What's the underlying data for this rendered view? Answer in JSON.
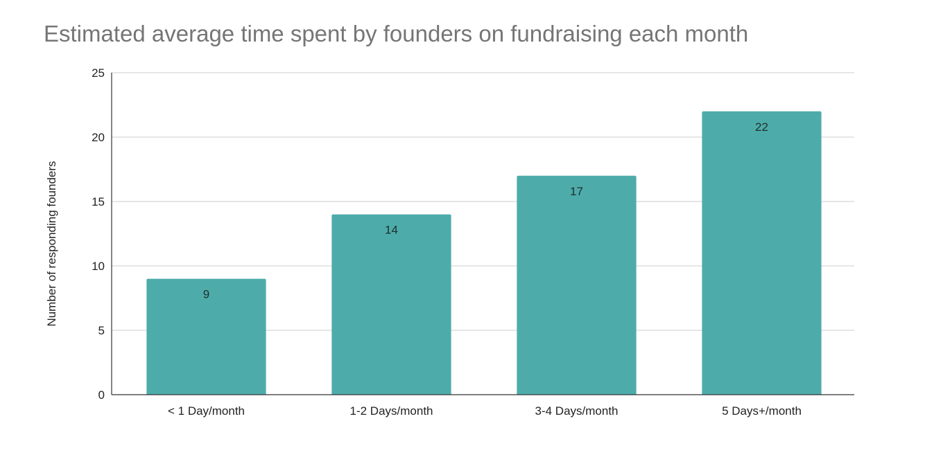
{
  "chart_data": {
    "type": "bar",
    "title": "Estimated average time spent by founders on fundraising each month",
    "xlabel": "",
    "ylabel": "Number of responding founders",
    "categories": [
      "< 1 Day/month",
      "1-2 Days/month",
      "3-4 Days/month",
      "5 Days+/month"
    ],
    "values": [
      9,
      14,
      17,
      22
    ],
    "data_labels": [
      "9",
      "14",
      "17",
      "22"
    ],
    "ylim": [
      0,
      25
    ],
    "yticks": [
      0,
      5,
      10,
      15,
      20,
      25
    ],
    "grid": true,
    "legend": "none",
    "colors": {
      "bar": "#4dacaa",
      "grid": "#cccccc",
      "axis": "#333333",
      "title": "#757575"
    }
  }
}
